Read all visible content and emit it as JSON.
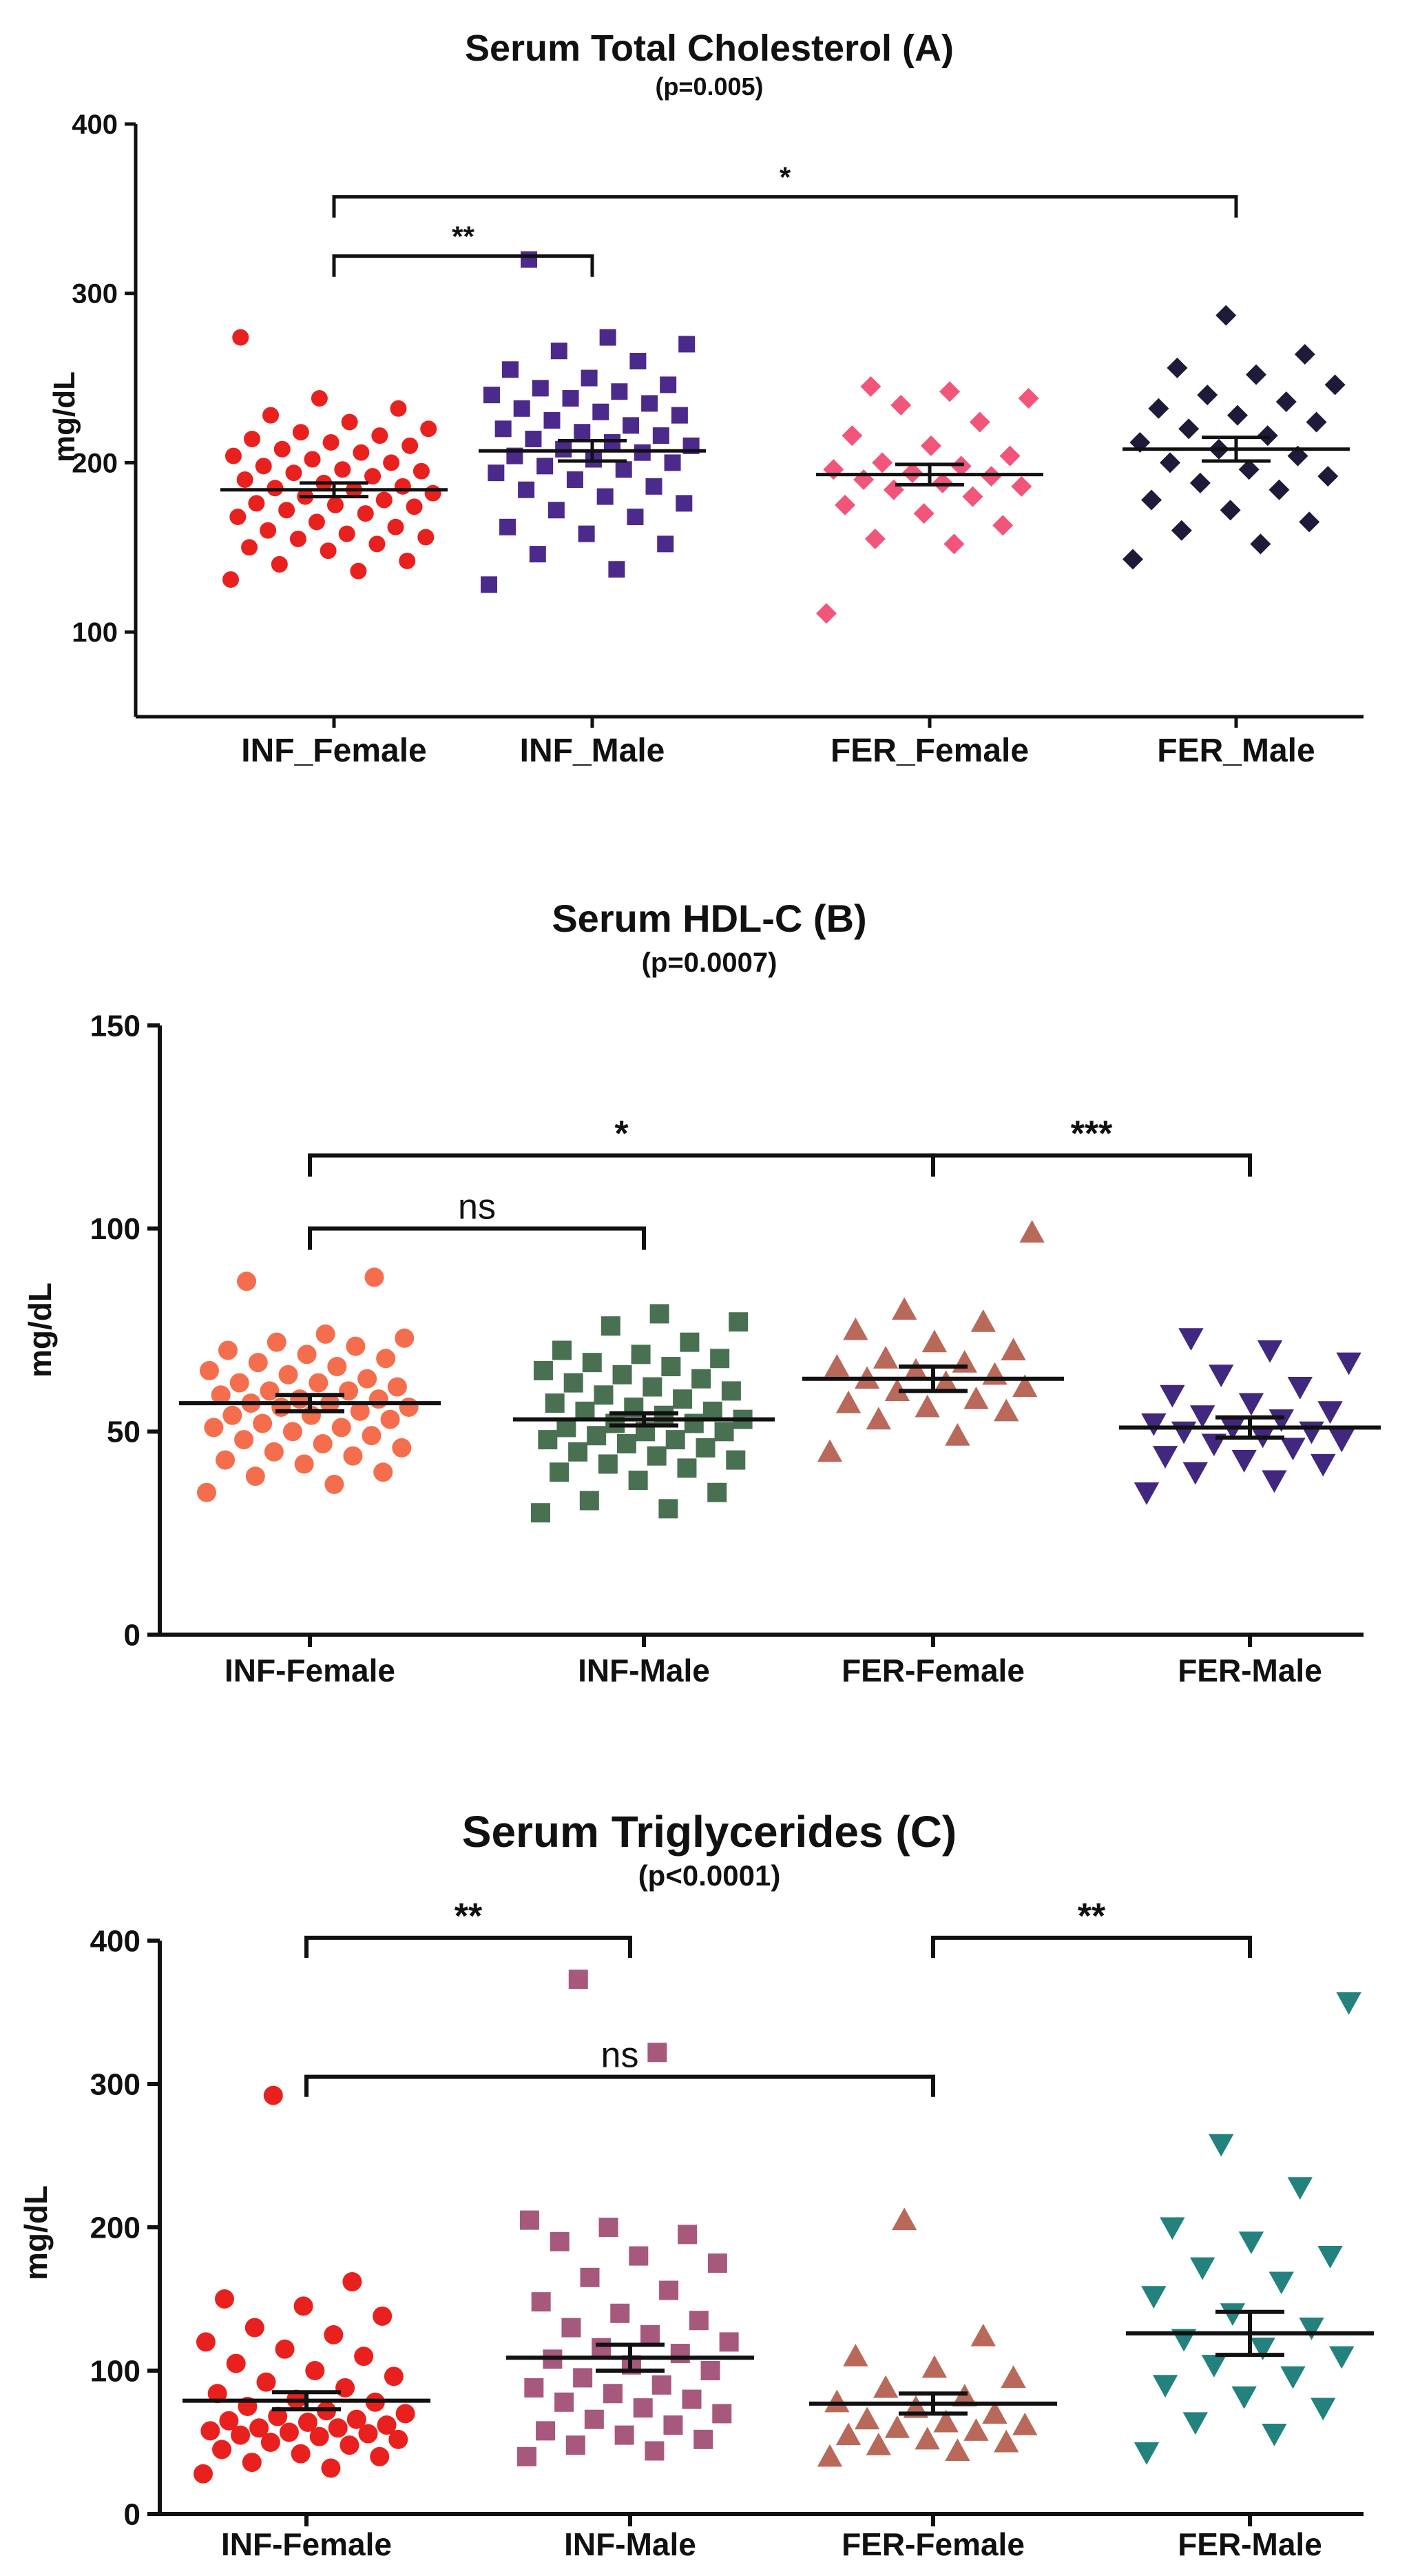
{
  "chart_data": [
    {
      "type": "scatter",
      "title": "Serum Total Cholesterol (A)",
      "subtitle": "(p=0.005)",
      "ylabel": "mg/dL",
      "ylim": [
        50,
        400
      ],
      "yticks": [
        100,
        200,
        300,
        400
      ],
      "categories": [
        "INF_Female",
        "INF_Male",
        "FER_Female",
        "FER_Male"
      ],
      "series": [
        {
          "name": "INF_Female",
          "marker": "circle",
          "color": "#e8211f",
          "mean": 184,
          "sem": 4,
          "values": [
            131,
            136,
            140,
            142,
            148,
            150,
            152,
            155,
            156,
            158,
            160,
            162,
            165,
            168,
            170,
            172,
            174,
            175,
            176,
            178,
            180,
            182,
            184,
            185,
            186,
            188,
            190,
            192,
            194,
            195,
            196,
            198,
            200,
            202,
            204,
            206,
            208,
            210,
            212,
            214,
            216,
            218,
            220,
            224,
            228,
            232,
            238,
            274
          ]
        },
        {
          "name": "INF_Male",
          "marker": "square",
          "color": "#4b2a8c",
          "mean": 207,
          "sem": 6,
          "values": [
            128,
            137,
            146,
            152,
            158,
            162,
            168,
            172,
            176,
            180,
            184,
            186,
            190,
            194,
            196,
            198,
            200,
            202,
            204,
            206,
            208,
            210,
            212,
            214,
            216,
            218,
            220,
            222,
            225,
            228,
            230,
            232,
            235,
            238,
            240,
            242,
            244,
            246,
            250,
            255,
            260,
            266,
            270,
            274,
            320
          ]
        },
        {
          "name": "FER_Female",
          "marker": "diamond",
          "color": "#f2557a",
          "mean": 193,
          "sem": 6,
          "values": [
            111,
            152,
            155,
            163,
            170,
            175,
            180,
            184,
            186,
            188,
            190,
            192,
            194,
            196,
            198,
            200,
            204,
            210,
            216,
            224,
            234,
            238,
            242,
            245
          ]
        },
        {
          "name": "FER_Male",
          "marker": "diamond",
          "color": "#1e1a3a",
          "mean": 208,
          "sem": 7,
          "values": [
            143,
            152,
            160,
            165,
            172,
            178,
            184,
            188,
            192,
            196,
            200,
            204,
            208,
            212,
            216,
            220,
            224,
            228,
            232,
            236,
            240,
            246,
            252,
            256,
            264,
            287
          ]
        }
      ],
      "annotations": [
        {
          "from": 0,
          "to": 1,
          "y": 322,
          "text": "**"
        },
        {
          "from": 0,
          "to": 3,
          "y": 357,
          "text": "*"
        }
      ]
    },
    {
      "type": "scatter",
      "title": "Serum HDL-C (B)",
      "subtitle": "(p=0.0007)",
      "ylabel": "mg/dL",
      "ylim": [
        0,
        150
      ],
      "yticks": [
        0,
        50,
        100,
        150
      ],
      "categories": [
        "INF-Female",
        "INF-Male",
        "FER-Female",
        "FER-Male"
      ],
      "series": [
        {
          "name": "INF-Female",
          "marker": "circle",
          "color": "#f46e4e",
          "mean": 57,
          "sem": 2,
          "values": [
            35,
            37,
            39,
            40,
            42,
            43,
            44,
            45,
            46,
            47,
            48,
            49,
            50,
            51,
            51,
            52,
            53,
            54,
            54,
            55,
            56,
            56,
            57,
            57,
            58,
            58,
            59,
            60,
            60,
            61,
            62,
            62,
            63,
            64,
            65,
            66,
            67,
            68,
            69,
            70,
            71,
            72,
            73,
            74,
            87,
            88
          ]
        },
        {
          "name": "INF-Male",
          "marker": "square",
          "color": "#4a7052",
          "mean": 53,
          "sem": 1.5,
          "values": [
            30,
            31,
            33,
            35,
            38,
            40,
            41,
            42,
            43,
            44,
            45,
            46,
            47,
            48,
            48,
            49,
            50,
            50,
            51,
            52,
            52,
            53,
            54,
            55,
            55,
            56,
            57,
            58,
            59,
            60,
            61,
            62,
            63,
            64,
            65,
            66,
            67,
            68,
            69,
            70,
            72,
            76,
            77,
            79
          ]
        },
        {
          "name": "FER-Female",
          "marker": "triangle-up",
          "color": "#b9695a",
          "mean": 63,
          "sem": 3,
          "values": [
            45,
            49,
            53,
            55,
            56,
            57,
            58,
            60,
            61,
            62,
            63,
            64,
            65,
            66,
            67,
            68,
            70,
            72,
            75,
            77,
            80,
            99
          ]
        },
        {
          "name": "FER-Male",
          "marker": "triangle-down",
          "color": "#41287e",
          "mean": 51,
          "sem": 2.5,
          "values": [
            35,
            38,
            40,
            42,
            43,
            44,
            46,
            47,
            48,
            49,
            50,
            50,
            51,
            52,
            53,
            54,
            55,
            57,
            59,
            61,
            64,
            67,
            70,
            73
          ]
        }
      ],
      "annotations": [
        {
          "from": 0,
          "to": 2,
          "y": 118,
          "text": "*"
        },
        {
          "from": 2,
          "to": 3,
          "y": 118,
          "text": "***"
        },
        {
          "from": 0,
          "to": 1,
          "y": 100,
          "text": "ns"
        }
      ]
    },
    {
      "type": "scatter",
      "title": "Serum Triglycerides (C)",
      "subtitle": "(p<0.0001)",
      "ylabel": "mg/dL",
      "ylim": [
        0,
        400
      ],
      "yticks": [
        0,
        100,
        200,
        300,
        400
      ],
      "categories": [
        "INF-Female",
        "INF-Male",
        "FER-Female",
        "FER-Male"
      ],
      "series": [
        {
          "name": "INF-Female",
          "marker": "circle",
          "color": "#e8211f",
          "mean": 79,
          "sem": 6,
          "values": [
            28,
            32,
            36,
            40,
            42,
            45,
            48,
            50,
            52,
            54,
            55,
            56,
            57,
            58,
            60,
            60,
            62,
            64,
            65,
            66,
            68,
            70,
            72,
            75,
            78,
            80,
            84,
            88,
            92,
            96,
            100,
            105,
            110,
            115,
            120,
            125,
            130,
            138,
            145,
            150,
            162,
            292
          ]
        },
        {
          "name": "INF-Male",
          "marker": "square",
          "color": "#a7587d",
          "mean": 109,
          "sem": 9,
          "values": [
            40,
            44,
            48,
            52,
            55,
            58,
            62,
            66,
            70,
            74,
            78,
            80,
            84,
            88,
            90,
            95,
            100,
            104,
            108,
            112,
            116,
            120,
            125,
            130,
            135,
            140,
            148,
            156,
            165,
            175,
            180,
            190,
            195,
            200,
            205,
            322,
            373
          ]
        },
        {
          "name": "FER-Female",
          "marker": "triangle-up",
          "color": "#b9695a",
          "mean": 77,
          "sem": 7,
          "values": [
            40,
            44,
            48,
            50,
            52,
            55,
            58,
            60,
            62,
            64,
            66,
            70,
            74,
            78,
            82,
            88,
            95,
            102,
            110,
            124,
            205
          ]
        },
        {
          "name": "FER-Male",
          "marker": "triangle-down",
          "color": "#23827e",
          "mean": 126,
          "sem": 15,
          "values": [
            43,
            56,
            64,
            74,
            82,
            90,
            96,
            104,
            110,
            116,
            122,
            130,
            140,
            152,
            162,
            172,
            180,
            190,
            200,
            228,
            258,
            357
          ]
        }
      ],
      "annotations": [
        {
          "from": 0,
          "to": 1,
          "y": 402,
          "text": "**"
        },
        {
          "from": 2,
          "to": 3,
          "y": 402,
          "text": "**"
        },
        {
          "from": 0,
          "to": 2,
          "y": 305,
          "text": "ns"
        }
      ]
    }
  ]
}
